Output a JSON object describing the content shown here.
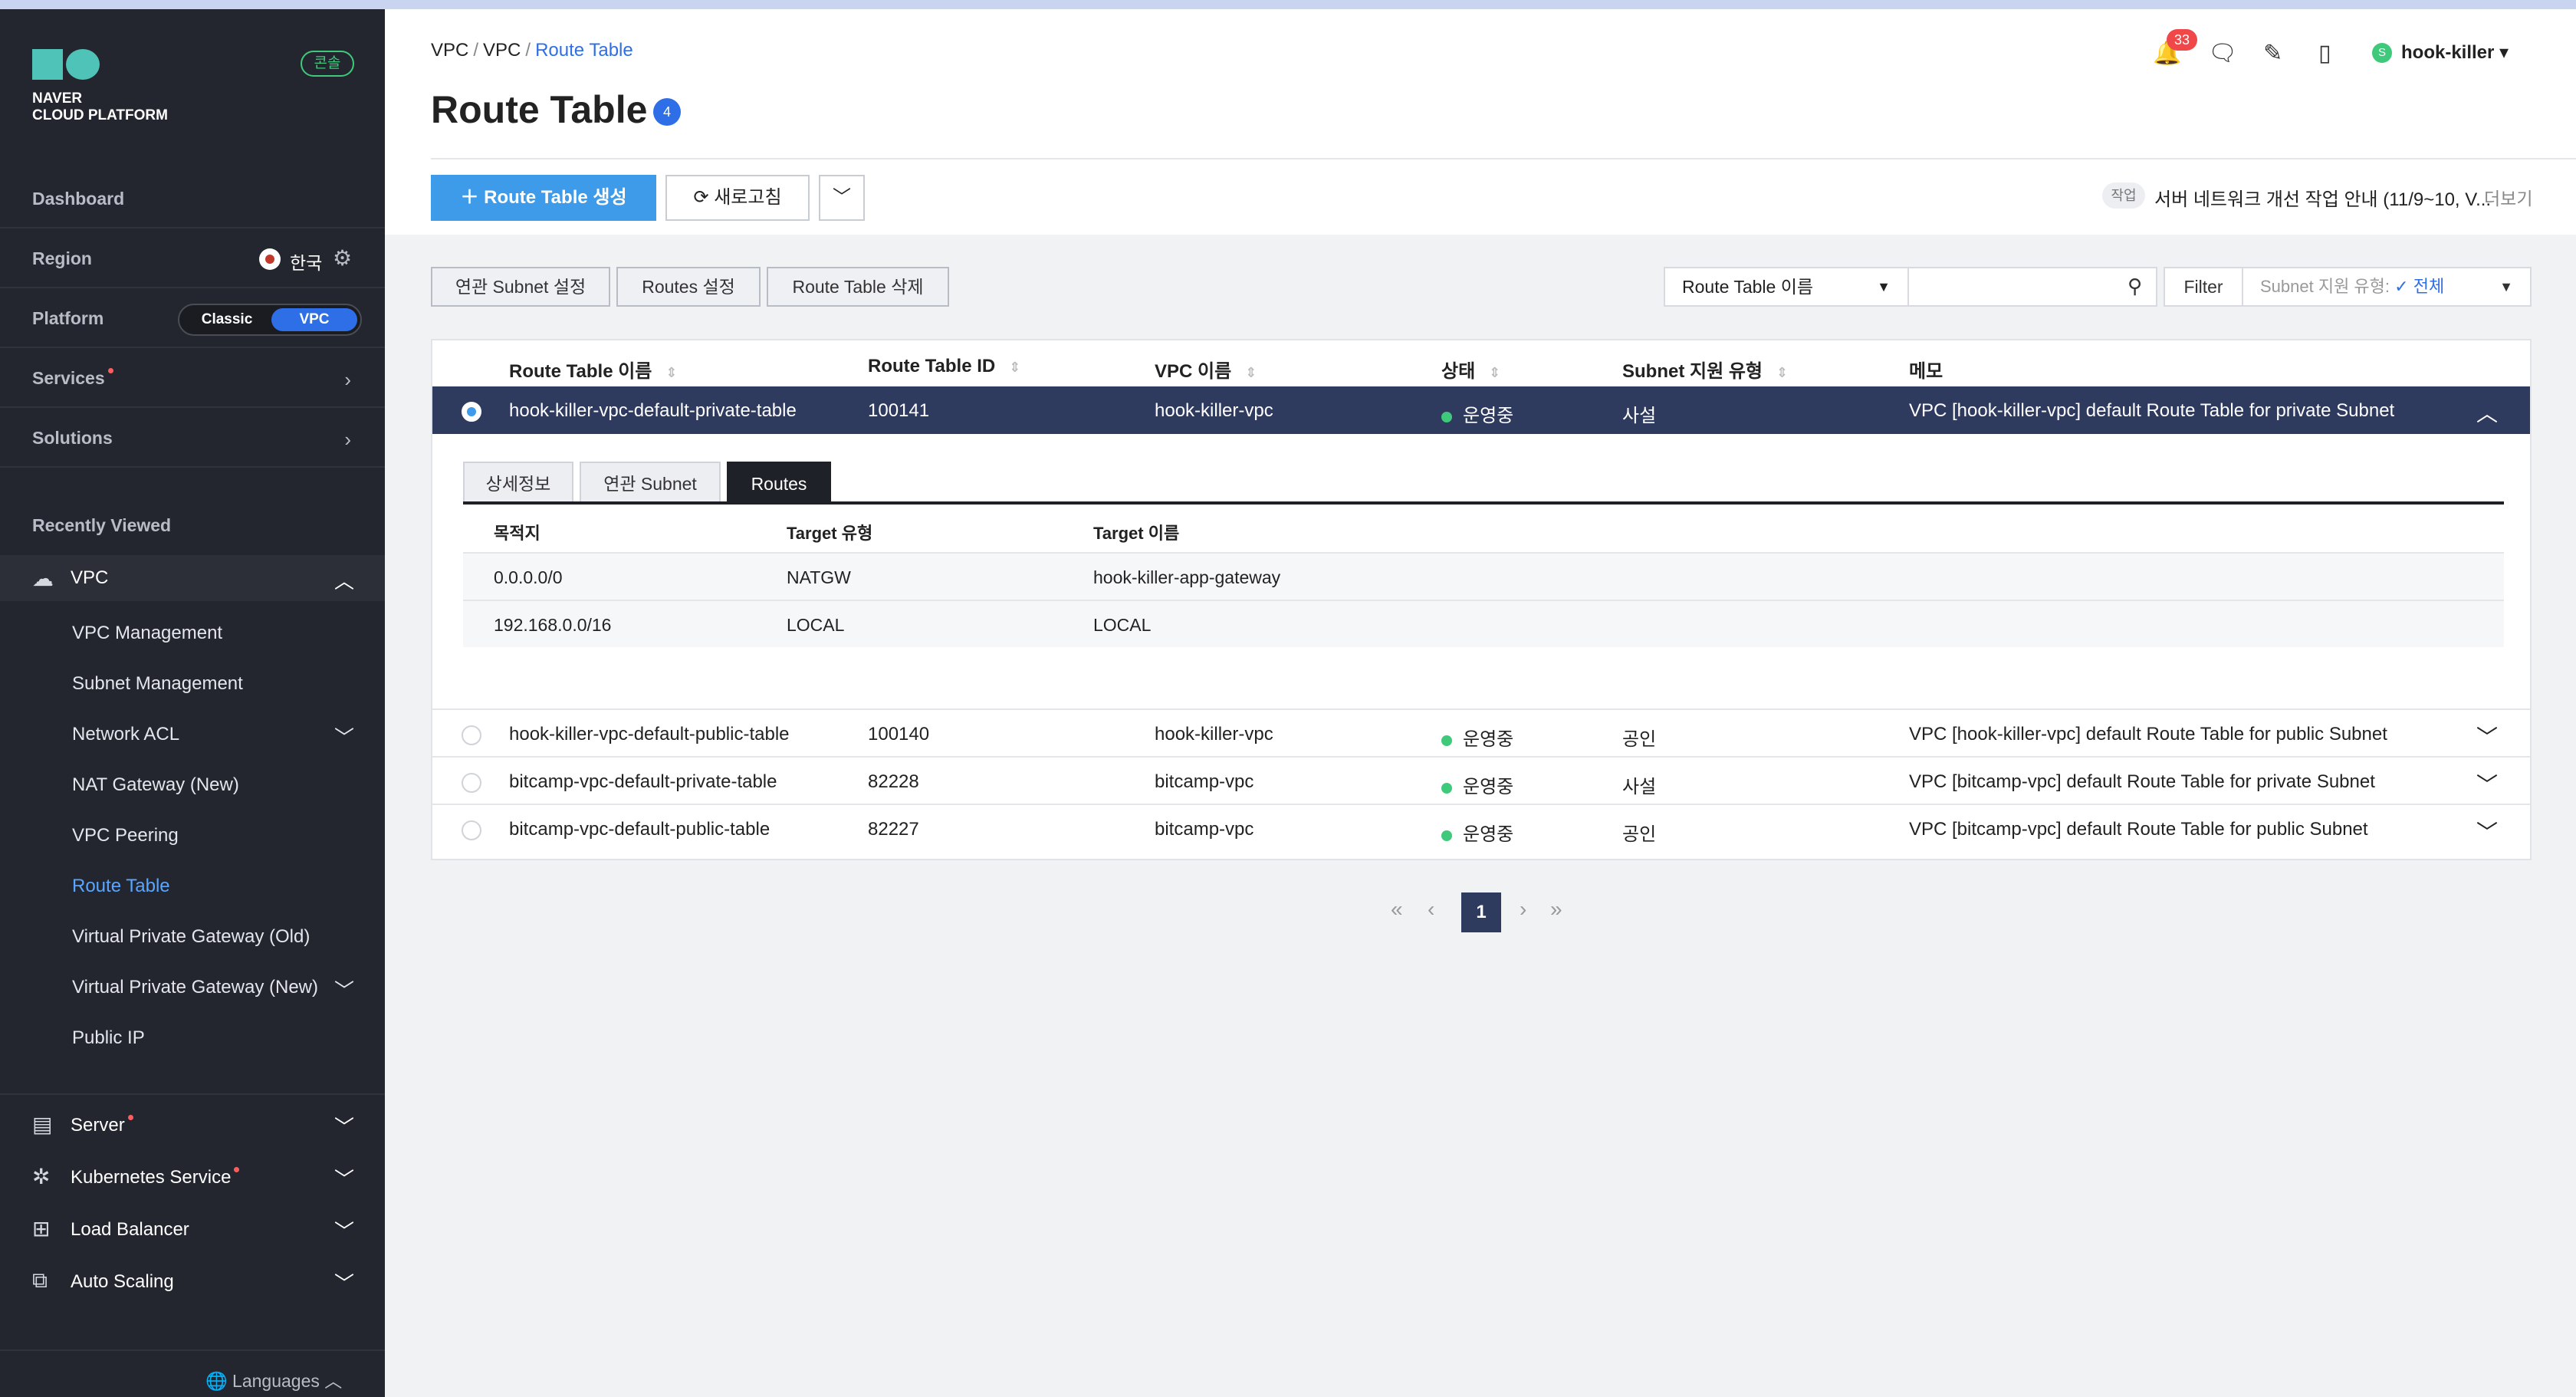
{
  "sidebar": {
    "logo_line1": "NAVER",
    "logo_line2": "CLOUD PLATFORM",
    "console_badge": "콘솔",
    "dashboard": "Dashboard",
    "region_label": "Region",
    "region_value": "한국",
    "platform_label": "Platform",
    "platform_classic": "Classic",
    "platform_vpc": "VPC",
    "services": "Services",
    "solutions": "Solutions",
    "recently_viewed": "Recently Viewed",
    "vpc_section": "VPC",
    "vpc_items": [
      "VPC Management",
      "Subnet Management",
      "Network ACL",
      "NAT Gateway (New)",
      "VPC Peering",
      "Route Table",
      "Virtual Private Gateway (Old)",
      "Virtual Private Gateway (New)",
      "Public IP"
    ],
    "server": "Server",
    "kubernetes": "Kubernetes Service",
    "load_balancer": "Load Balancer",
    "auto_scaling": "Auto Scaling",
    "languages": "Languages"
  },
  "header": {
    "breadcrumb": [
      "VPC",
      "VPC",
      "Route Table"
    ],
    "title": "Route Table",
    "count": "4",
    "notif_count": "33",
    "user": "hook-killer",
    "user_initial": "S"
  },
  "toolbar": {
    "create": "Route Table 생성",
    "refresh": "새로고침",
    "notice_tag": "작업",
    "notice_text": "서버 네트워크 개선 작업 안내 (11/9~10, V...",
    "notice_more": "더보기"
  },
  "actions": {
    "subnet_setting": "연관 Subnet 설정",
    "routes_setting": "Routes 설정",
    "delete": "Route Table 삭제",
    "search_select": "Route Table 이름",
    "filter": "Filter",
    "subnet_filter_label": "Subnet 지원 유형:",
    "subnet_filter_value": "전체"
  },
  "table": {
    "headers": [
      "Route Table 이름",
      "Route Table ID",
      "VPC 이름",
      "상태",
      "Subnet 지원 유형",
      "메모"
    ],
    "rows": [
      {
        "name": "hook-killer-vpc-default-private-table",
        "id": "100141",
        "vpc": "hook-killer-vpc",
        "status": "운영중",
        "type": "사설",
        "memo": "VPC [hook-killer-vpc] default Route Table for private Subnet"
      },
      {
        "name": "hook-killer-vpc-default-public-table",
        "id": "100140",
        "vpc": "hook-killer-vpc",
        "status": "운영중",
        "type": "공인",
        "memo": "VPC [hook-killer-vpc] default Route Table for public Subnet"
      },
      {
        "name": "bitcamp-vpc-default-private-table",
        "id": "82228",
        "vpc": "bitcamp-vpc",
        "status": "운영중",
        "type": "사설",
        "memo": "VPC [bitcamp-vpc] default Route Table for private Subnet"
      },
      {
        "name": "bitcamp-vpc-default-public-table",
        "id": "82227",
        "vpc": "bitcamp-vpc",
        "status": "운영중",
        "type": "공인",
        "memo": "VPC [bitcamp-vpc] default Route Table for public Subnet"
      }
    ]
  },
  "detail": {
    "tabs": [
      "상세정보",
      "연관 Subnet",
      "Routes"
    ],
    "headers": [
      "목적지",
      "Target 유형",
      "Target 이름"
    ],
    "routes": [
      {
        "dest": "0.0.0.0/0",
        "type": "NATGW",
        "target": "hook-killer-app-gateway"
      },
      {
        "dest": "192.168.0.0/16",
        "type": "LOCAL",
        "target": "LOCAL"
      }
    ]
  },
  "pagination": {
    "current": "1"
  }
}
